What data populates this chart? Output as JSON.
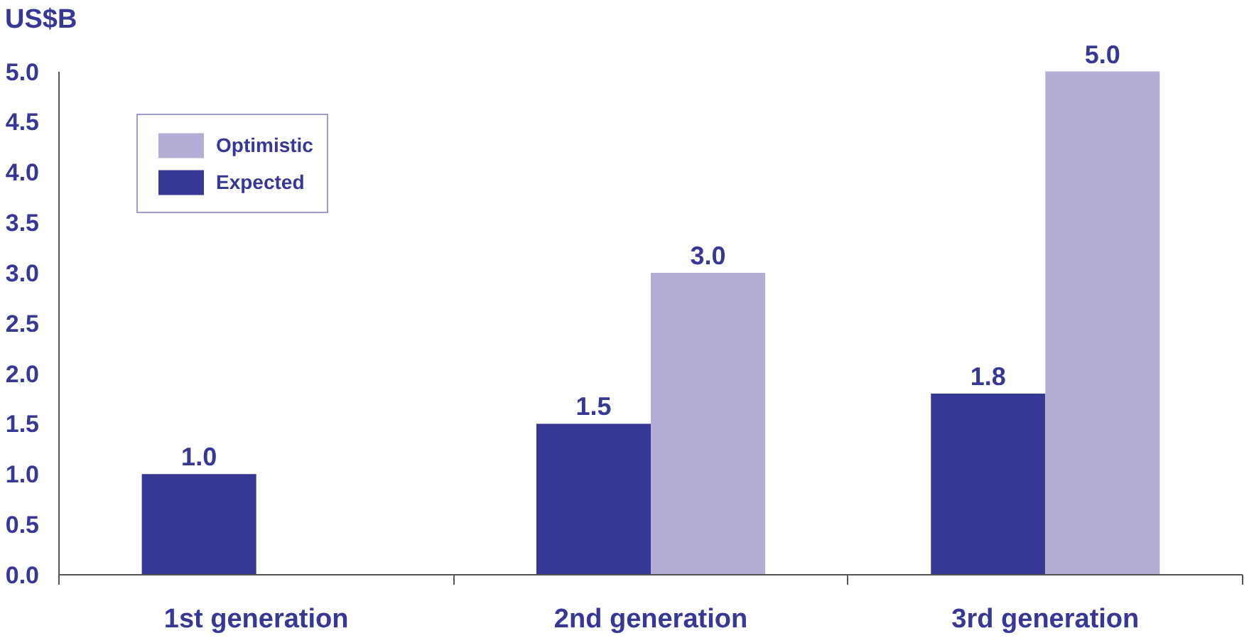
{
  "chart_data": {
    "type": "bar",
    "ylabel": "US$B",
    "categories": [
      "1st generation",
      "2nd generation",
      "3rd generation"
    ],
    "series": [
      {
        "name": "Expected",
        "color": "#373895",
        "values": [
          1.0,
          1.5,
          1.8
        ],
        "value_labels": [
          "1.0",
          "1.5",
          "1.8"
        ]
      },
      {
        "name": "Optimistic",
        "color": "#b3aed6",
        "values": [
          null,
          3.0,
          5.0
        ],
        "value_labels": [
          null,
          "3.0",
          "5.0"
        ]
      }
    ],
    "ylim": [
      0,
      5.0
    ],
    "yticks": [
      {
        "value": 0,
        "label": "0.0"
      },
      {
        "value": 0.5,
        "label": "0.5"
      },
      {
        "value": 1,
        "label": "1.0"
      },
      {
        "value": 1.5,
        "label": "1.5"
      },
      {
        "value": 2,
        "label": "2.0"
      },
      {
        "value": 2.5,
        "label": "2.5"
      },
      {
        "value": 3,
        "label": "3.0"
      },
      {
        "value": 3.5,
        "label": "3.5"
      },
      {
        "value": 4,
        "label": "4.0"
      },
      {
        "value": 4.5,
        "label": "4.5"
      },
      {
        "value": 5,
        "label": "5.0"
      }
    ],
    "legend": "top left",
    "grid": false
  }
}
